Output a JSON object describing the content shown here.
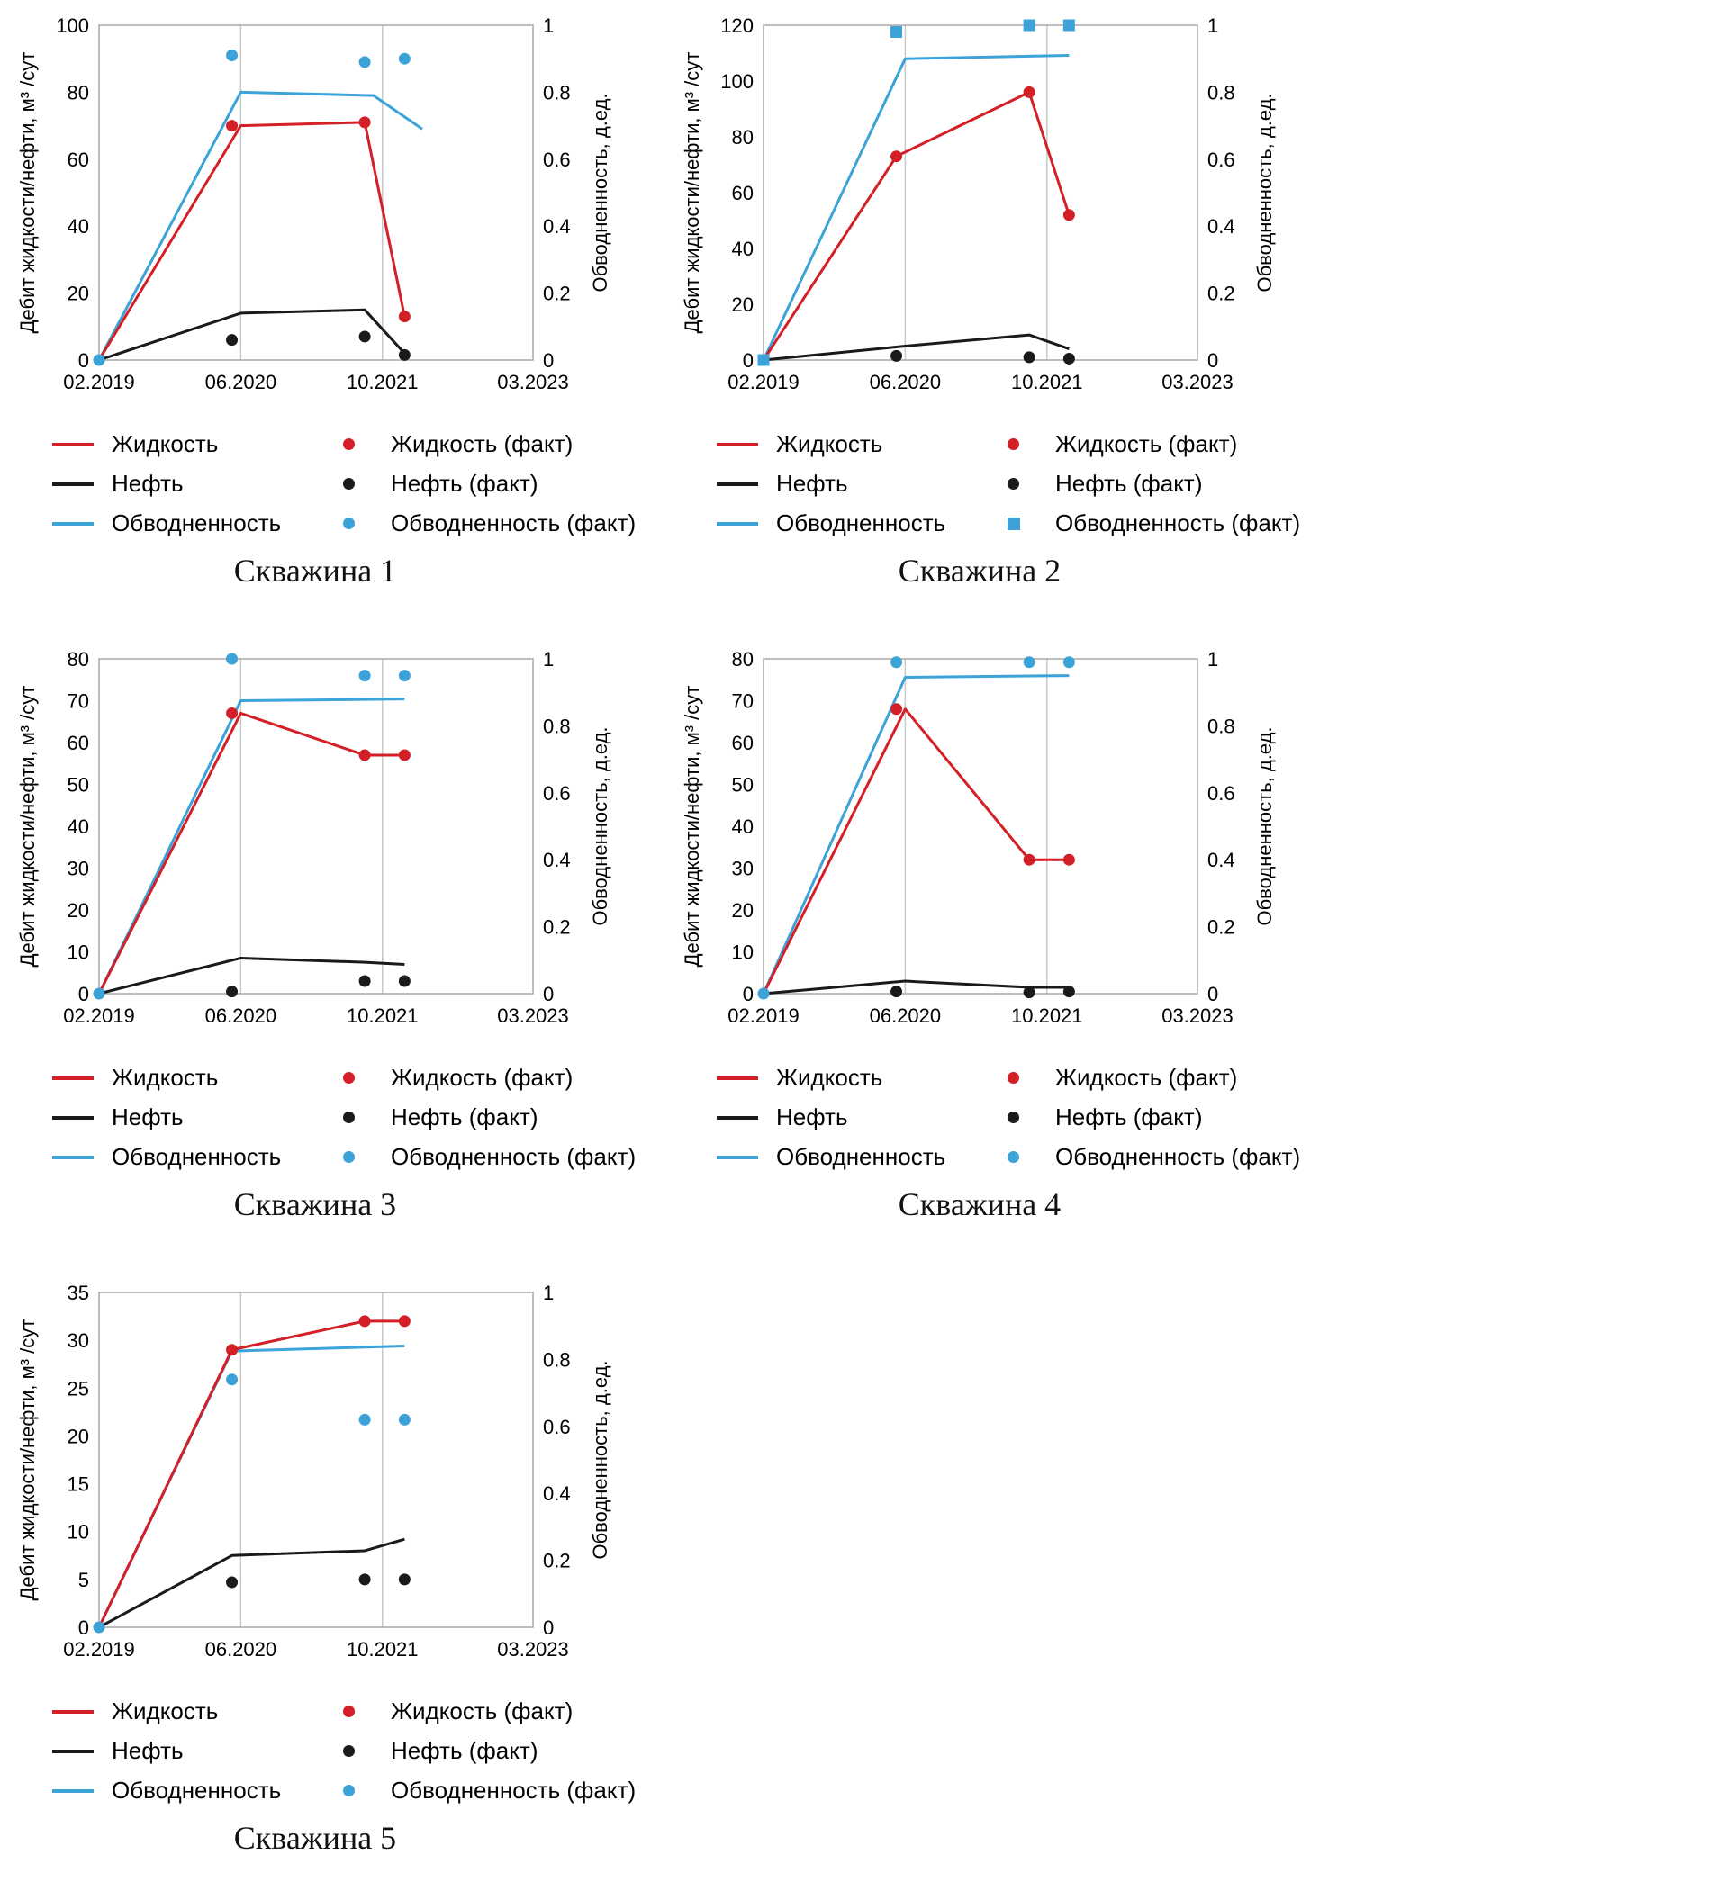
{
  "legend": {
    "liquid": "Жидкость",
    "liquid_fact": "Жидкость (факт)",
    "oil": "Нефть",
    "oil_fact": "Нефть (факт)",
    "watercut": "Обводненность",
    "watercut_fact": "Обводненность (факт)"
  },
  "colors": {
    "liquid": "#d41f26",
    "oil": "#1a1a1a",
    "watercut": "#3ba3d8",
    "gridline": "#c9c9c9",
    "plot_border": "#a8a8a8"
  },
  "chart_data": [
    {
      "type": "line",
      "title": "Скважина 1",
      "ylabel_left": "Дебит жидкости/нефти, м³ /сут",
      "ylabel_right": "Обводненность, д.ед.",
      "x_range": [
        0,
        49
      ],
      "x_ticks": [
        {
          "pos": 0,
          "label": "02.2019"
        },
        {
          "pos": 16,
          "label": "06.2020"
        },
        {
          "pos": 32,
          "label": "10.2021"
        },
        {
          "pos": 49,
          "label": "03.2023"
        }
      ],
      "left_ylim": [
        0,
        100
      ],
      "left_yticks": [
        0,
        20,
        40,
        60,
        80,
        100
      ],
      "right_ylim": [
        0,
        1
      ],
      "right_yticks": [
        0,
        0.2,
        0.4,
        0.6,
        0.8,
        1
      ],
      "right_ytick_labels": [
        "0",
        "0.2",
        "0.4",
        "0.6",
        "0.8",
        "1"
      ],
      "watercut_marker": "circle",
      "series": {
        "liquid_line": {
          "x": [
            0,
            16,
            30,
            34.5
          ],
          "y": [
            0,
            70,
            71,
            13
          ]
        },
        "oil_line": {
          "x": [
            0,
            16,
            30,
            34.5
          ],
          "y": [
            0,
            14,
            15,
            2
          ]
        },
        "watercut_line": {
          "x": [
            0,
            16,
            31,
            36.5
          ],
          "y": [
            0,
            0.8,
            0.79,
            0.69
          ]
        },
        "liquid_fact": {
          "x": [
            15,
            30,
            34.5
          ],
          "y": [
            70,
            71,
            13
          ]
        },
        "oil_fact": {
          "x": [
            15,
            30,
            34.5
          ],
          "y": [
            6,
            7,
            1.5
          ]
        },
        "watercut_fact": {
          "x": [
            0,
            15,
            30,
            34.5
          ],
          "y": [
            0,
            0.91,
            0.89,
            0.9
          ]
        }
      }
    },
    {
      "type": "line",
      "title": "Скважина 2",
      "ylabel_left": "Дебит жидкости/нефти, м³ /сут",
      "ylabel_right": "Обводненность, д.ед.",
      "x_range": [
        0,
        49
      ],
      "x_ticks": [
        {
          "pos": 0,
          "label": "02.2019"
        },
        {
          "pos": 16,
          "label": "06.2020"
        },
        {
          "pos": 32,
          "label": "10.2021"
        },
        {
          "pos": 49,
          "label": "03.2023"
        }
      ],
      "left_ylim": [
        0,
        120
      ],
      "left_yticks": [
        0,
        20,
        40,
        60,
        80,
        100,
        120
      ],
      "right_ylim": [
        0,
        1
      ],
      "right_yticks": [
        0,
        0.2,
        0.4,
        0.6,
        0.8,
        1
      ],
      "right_ytick_labels": [
        "0",
        "0.2",
        "0.4",
        "0.6",
        "0.8",
        "1"
      ],
      "watercut_marker": "square",
      "series": {
        "liquid_line": {
          "x": [
            0,
            15,
            30,
            34.5
          ],
          "y": [
            0,
            73,
            96,
            52
          ]
        },
        "oil_line": {
          "x": [
            0,
            16,
            30,
            34.5
          ],
          "y": [
            0,
            5,
            9,
            4
          ]
        },
        "watercut_line": {
          "x": [
            0,
            16,
            34.5
          ],
          "y": [
            0,
            0.9,
            0.91
          ]
        },
        "liquid_fact": {
          "x": [
            15,
            30,
            34.5
          ],
          "y": [
            73,
            96,
            52
          ]
        },
        "oil_fact": {
          "x": [
            15,
            30,
            34.5
          ],
          "y": [
            1.5,
            1,
            0.5
          ]
        },
        "watercut_fact": {
          "x": [
            0,
            15,
            30,
            34.5
          ],
          "y": [
            0,
            0.98,
            1.0,
            1.0
          ]
        }
      }
    },
    {
      "type": "line",
      "title": "Скважина 3",
      "ylabel_left": "Дебит жидкости/нефти, м³ /сут",
      "ylabel_right": "Обводненность, д.ед.",
      "x_range": [
        0,
        49
      ],
      "x_ticks": [
        {
          "pos": 0,
          "label": "02.2019"
        },
        {
          "pos": 16,
          "label": "06.2020"
        },
        {
          "pos": 32,
          "label": "10.2021"
        },
        {
          "pos": 49,
          "label": "03.2023"
        }
      ],
      "left_ylim": [
        0,
        80
      ],
      "left_yticks": [
        0,
        10,
        20,
        30,
        40,
        50,
        60,
        70,
        80
      ],
      "right_ylim": [
        0,
        1
      ],
      "right_yticks": [
        0,
        0.2,
        0.4,
        0.6,
        0.8,
        1
      ],
      "right_ytick_labels": [
        "0",
        "0.2",
        "0.4",
        "0.6",
        "0.8",
        "1"
      ],
      "watercut_marker": "circle",
      "series": {
        "liquid_line": {
          "x": [
            0,
            16,
            30,
            34.5
          ],
          "y": [
            0,
            67,
            57,
            57
          ]
        },
        "oil_line": {
          "x": [
            0,
            16,
            30,
            34.5
          ],
          "y": [
            0,
            8.5,
            7.5,
            7
          ]
        },
        "watercut_line": {
          "x": [
            0,
            16,
            34.5
          ],
          "y": [
            0,
            0.875,
            0.88
          ]
        },
        "liquid_fact": {
          "x": [
            15,
            30,
            34.5
          ],
          "y": [
            67,
            57,
            57
          ]
        },
        "oil_fact": {
          "x": [
            15,
            30,
            34.5
          ],
          "y": [
            0.5,
            3,
            3
          ]
        },
        "watercut_fact": {
          "x": [
            0,
            15,
            30,
            34.5
          ],
          "y": [
            0,
            1.0,
            0.95,
            0.95
          ]
        }
      }
    },
    {
      "type": "line",
      "title": "Скважина 4",
      "ylabel_left": "Дебит жидкости/нефти, м³ /сут",
      "ylabel_right": "Обводненность, д.ед.",
      "x_range": [
        0,
        49
      ],
      "x_ticks": [
        {
          "pos": 0,
          "label": "02.2019"
        },
        {
          "pos": 16,
          "label": "06.2020"
        },
        {
          "pos": 32,
          "label": "10.2021"
        },
        {
          "pos": 49,
          "label": "03.2023"
        }
      ],
      "left_ylim": [
        0,
        80
      ],
      "left_yticks": [
        0,
        10,
        20,
        30,
        40,
        50,
        60,
        70,
        80
      ],
      "right_ylim": [
        0,
        1
      ],
      "right_yticks": [
        0,
        0.2,
        0.4,
        0.6,
        0.8,
        1
      ],
      "right_ytick_labels": [
        "0",
        "0.2",
        "0.4",
        "0.6",
        "0.8",
        "1"
      ],
      "watercut_marker": "circle",
      "series": {
        "liquid_line": {
          "x": [
            0,
            16,
            30,
            34.5
          ],
          "y": [
            0,
            68,
            32,
            32
          ]
        },
        "oil_line": {
          "x": [
            0,
            16,
            30,
            34.5
          ],
          "y": [
            0,
            3,
            1.5,
            1.5
          ]
        },
        "watercut_line": {
          "x": [
            0,
            16,
            34.5
          ],
          "y": [
            0,
            0.945,
            0.95
          ]
        },
        "liquid_fact": {
          "x": [
            15,
            30,
            34.5
          ],
          "y": [
            68,
            32,
            32
          ]
        },
        "oil_fact": {
          "x": [
            15,
            30,
            34.5
          ],
          "y": [
            0.5,
            0.3,
            0.5
          ]
        },
        "watercut_fact": {
          "x": [
            0,
            15,
            30,
            34.5
          ],
          "y": [
            0,
            0.99,
            0.99,
            0.99
          ]
        }
      }
    },
    {
      "type": "line",
      "title": "Скважина 5",
      "ylabel_left": "Дебит жидкости/нефти, м³ /сут",
      "ylabel_right": "Обводненность, д.ед.",
      "x_range": [
        0,
        49
      ],
      "x_ticks": [
        {
          "pos": 0,
          "label": "02.2019"
        },
        {
          "pos": 16,
          "label": "06.2020"
        },
        {
          "pos": 32,
          "label": "10.2021"
        },
        {
          "pos": 49,
          "label": "03.2023"
        }
      ],
      "left_ylim": [
        0,
        35
      ],
      "left_yticks": [
        0,
        5,
        10,
        15,
        20,
        25,
        30,
        35
      ],
      "right_ylim": [
        0,
        1
      ],
      "right_yticks": [
        0,
        0.2,
        0.4,
        0.6,
        0.8,
        1
      ],
      "right_ytick_labels": [
        "0",
        "0.2",
        "0.4",
        "0.6",
        "0.8",
        "1"
      ],
      "watercut_marker": "circle",
      "series": {
        "liquid_line": {
          "x": [
            0,
            15,
            30,
            34.5
          ],
          "y": [
            0,
            29,
            32,
            32
          ]
        },
        "oil_line": {
          "x": [
            0,
            15,
            30,
            34.5
          ],
          "y": [
            0,
            7.5,
            8,
            9.2
          ]
        },
        "watercut_line": {
          "x": [
            0,
            15,
            34.5
          ],
          "y": [
            0,
            0.825,
            0.84
          ]
        },
        "liquid_fact": {
          "x": [
            15,
            30,
            34.5
          ],
          "y": [
            29,
            32,
            32
          ]
        },
        "oil_fact": {
          "x": [
            15,
            30,
            34.5
          ],
          "y": [
            4.7,
            5,
            5
          ]
        },
        "watercut_fact": {
          "x": [
            0,
            15,
            30,
            34.5
          ],
          "y": [
            0,
            0.74,
            0.62,
            0.62
          ]
        }
      }
    }
  ]
}
